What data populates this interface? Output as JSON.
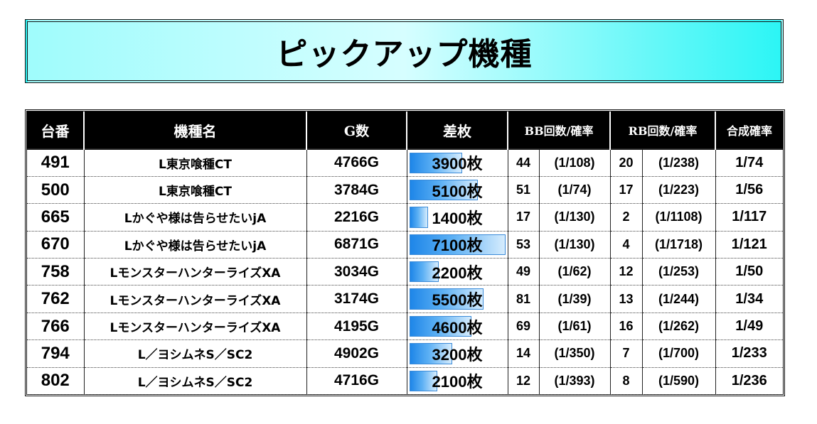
{
  "title": "ピックアップ機種",
  "headers": {
    "unit": "台番",
    "machine": "機種名",
    "games": "G数",
    "diff": "差枚",
    "bb": "BB回数/確率",
    "rb": "RB回数/確率",
    "combined": "合成確率"
  },
  "diff_max": 7100,
  "rows": [
    {
      "unit": "491",
      "machine": "L東京喰種CT",
      "games": "4766G",
      "diff": "3900枚",
      "diff_value": 3900,
      "bb": "44",
      "bb_rate": "(1/108)",
      "rb": "20",
      "rb_rate": "(1/238)",
      "combined": "1/74"
    },
    {
      "unit": "500",
      "machine": "L東京喰種CT",
      "games": "3784G",
      "diff": "5100枚",
      "diff_value": 5100,
      "bb": "51",
      "bb_rate": "(1/74)",
      "rb": "17",
      "rb_rate": "(1/223)",
      "combined": "1/56"
    },
    {
      "unit": "665",
      "machine": "Lかぐや様は告らせたいjA",
      "games": "2216G",
      "diff": "1400枚",
      "diff_value": 1400,
      "bb": "17",
      "bb_rate": "(1/130)",
      "rb": "2",
      "rb_rate": "(1/1108)",
      "combined": "1/117"
    },
    {
      "unit": "670",
      "machine": "Lかぐや様は告らせたいjA",
      "games": "6871G",
      "diff": "7100枚",
      "diff_value": 7100,
      "bb": "53",
      "bb_rate": "(1/130)",
      "rb": "4",
      "rb_rate": "(1/1718)",
      "combined": "1/121"
    },
    {
      "unit": "758",
      "machine": "LモンスターハンターライズXA",
      "games": "3034G",
      "diff": "2200枚",
      "diff_value": 2200,
      "bb": "49",
      "bb_rate": "(1/62)",
      "rb": "12",
      "rb_rate": "(1/253)",
      "combined": "1/50"
    },
    {
      "unit": "762",
      "machine": "LモンスターハンターライズXA",
      "games": "3174G",
      "diff": "5500枚",
      "diff_value": 5500,
      "bb": "81",
      "bb_rate": "(1/39)",
      "rb": "13",
      "rb_rate": "(1/244)",
      "combined": "1/34"
    },
    {
      "unit": "766",
      "machine": "LモンスターハンターライズXA",
      "games": "4195G",
      "diff": "4600枚",
      "diff_value": 4600,
      "bb": "69",
      "bb_rate": "(1/61)",
      "rb": "16",
      "rb_rate": "(1/262)",
      "combined": "1/49"
    },
    {
      "unit": "794",
      "machine": "L／ヨシムネS／SC2",
      "games": "4902G",
      "diff": "3200枚",
      "diff_value": 3200,
      "bb": "14",
      "bb_rate": "(1/350)",
      "rb": "7",
      "rb_rate": "(1/700)",
      "combined": "1/233"
    },
    {
      "unit": "802",
      "machine": "L／ヨシムネS／SC2",
      "games": "4716G",
      "diff": "2100枚",
      "diff_value": 2100,
      "bb": "12",
      "bb_rate": "(1/393)",
      "rb": "8",
      "rb_rate": "(1/590)",
      "combined": "1/236"
    }
  ]
}
